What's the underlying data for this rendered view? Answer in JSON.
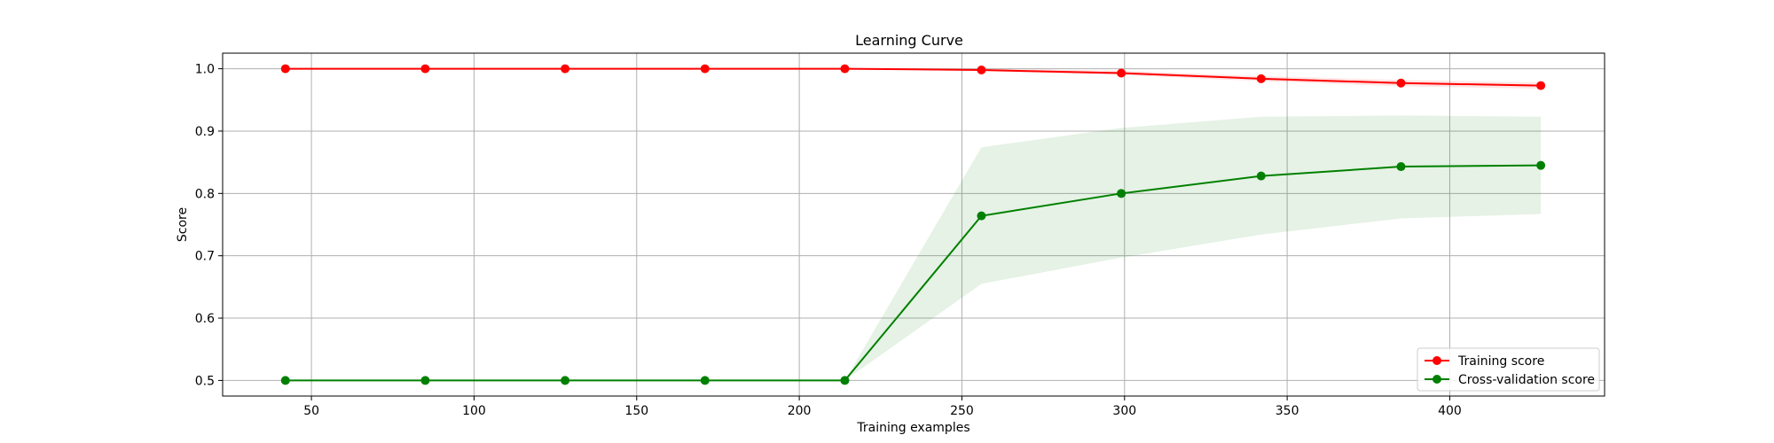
{
  "chart_data": {
    "type": "line",
    "title": "Learning Curve",
    "xlabel": "Training examples",
    "ylabel": "Score",
    "xlim": [
      22.7,
      447.6
    ],
    "ylim": [
      0.475,
      1.025
    ],
    "xticks": [
      50,
      100,
      150,
      200,
      250,
      300,
      350,
      400
    ],
    "yticks": [
      0.5,
      0.6,
      0.7,
      0.8,
      0.9,
      1.0
    ],
    "xtick_labels": [
      "50",
      "100",
      "150",
      "200",
      "250",
      "300",
      "350",
      "400"
    ],
    "ytick_labels": [
      "0.5",
      "0.6",
      "0.7",
      "0.8",
      "0.9",
      "1.0"
    ],
    "grid": true,
    "legend_position": "bottom-right",
    "x": [
      42,
      85,
      128,
      171,
      214,
      256,
      299,
      342,
      385,
      428
    ],
    "series": [
      {
        "name": "Training score",
        "color": "#ff0000",
        "band_color": "#ff0000",
        "values": [
          1.0,
          1.0,
          1.0,
          1.0,
          1.0,
          0.998,
          0.993,
          0.984,
          0.977,
          0.973
        ],
        "band_low": [
          1.0,
          1.0,
          1.0,
          1.0,
          1.0,
          0.996,
          0.99,
          0.98,
          0.972,
          0.968
        ],
        "band_high": [
          1.0,
          1.0,
          1.0,
          1.0,
          1.0,
          1.0,
          0.997,
          0.988,
          0.982,
          0.978
        ]
      },
      {
        "name": "Cross-validation score",
        "color": "#008000",
        "band_color": "#008000",
        "values": [
          0.5,
          0.5,
          0.5,
          0.5,
          0.5,
          0.764,
          0.8,
          0.828,
          0.843,
          0.845
        ],
        "band_low": [
          0.5,
          0.5,
          0.5,
          0.5,
          0.5,
          0.655,
          0.697,
          0.734,
          0.76,
          0.767
        ],
        "band_high": [
          0.5,
          0.5,
          0.5,
          0.5,
          0.5,
          0.874,
          0.905,
          0.923,
          0.925,
          0.923
        ]
      }
    ]
  }
}
